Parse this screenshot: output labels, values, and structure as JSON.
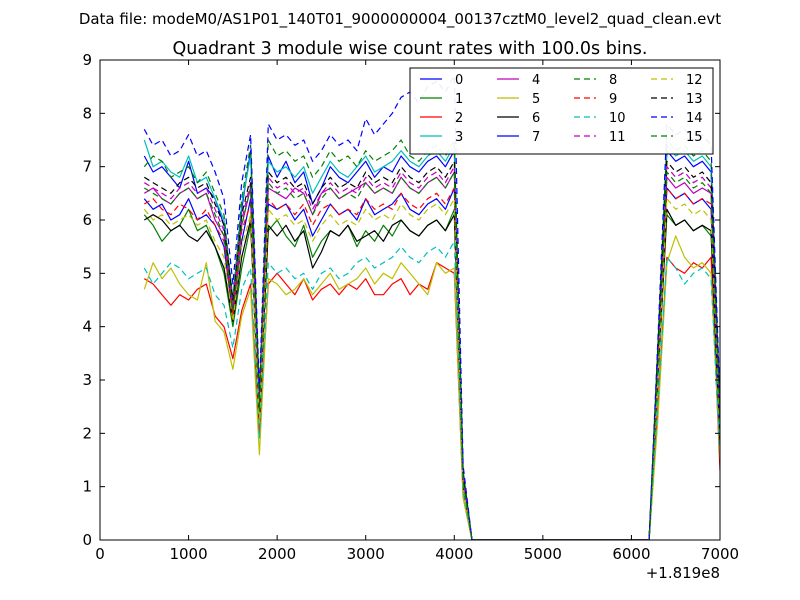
{
  "figure": {
    "suptitle": "Data file: modeM0/AS1P01_140T01_9000000004_00137cztM0_level2_quad_clean.evt"
  },
  "chart_data": {
    "type": "line",
    "title": "Quadrant 3 module wise count rates with 100.0s bins.",
    "xlabel": "",
    "ylabel": "",
    "x_offset_label": "+1.819e8",
    "xlim": [
      0,
      7000
    ],
    "ylim": [
      0,
      9
    ],
    "x_ticks": [
      0,
      1000,
      2000,
      3000,
      4000,
      5000,
      6000,
      7000
    ],
    "y_ticks": [
      0,
      1,
      2,
      3,
      4,
      5,
      6,
      7,
      8,
      9
    ],
    "x_tick_labels": [
      "0",
      "1000",
      "2000",
      "3000",
      "4000",
      "5000",
      "6000",
      "7000"
    ],
    "y_tick_labels": [
      "0",
      "1",
      "2",
      "3",
      "4",
      "5",
      "6",
      "7",
      "8",
      "9"
    ],
    "grid": false,
    "legend_position": "top-right",
    "legend_columns": 4,
    "x": [
      500,
      600,
      700,
      800,
      900,
      1000,
      1100,
      1200,
      1300,
      1400,
      1500,
      1600,
      1700,
      1800,
      1900,
      2000,
      2100,
      2200,
      2300,
      2400,
      2500,
      2600,
      2700,
      2800,
      2900,
      3000,
      3100,
      3200,
      3300,
      3400,
      3500,
      3600,
      3700,
      3800,
      3900,
      4000,
      4100,
      4200,
      4300,
      4400,
      4500,
      4600,
      4700,
      4800,
      4900,
      5000,
      5100,
      5200,
      5300,
      5400,
      5500,
      5600,
      5700,
      5800,
      5900,
      6000,
      6100,
      6200,
      6300,
      6400,
      6500,
      6600,
      6700,
      6800,
      6900,
      7000
    ],
    "series": [
      {
        "name": "0",
        "color": "#0000ff",
        "style": "solid",
        "values": [
          7.2,
          6.9,
          7.0,
          6.8,
          6.6,
          7.1,
          6.5,
          6.6,
          6.4,
          5.9,
          4.3,
          6.2,
          7.3,
          2.5,
          7.2,
          6.8,
          7.1,
          6.7,
          6.9,
          6.3,
          6.6,
          7.0,
          6.8,
          6.7,
          6.9,
          7.1,
          6.8,
          7.0,
          6.9,
          7.2,
          7.0,
          6.9,
          7.1,
          7.2,
          7.0,
          7.3,
          1.2,
          0,
          0,
          0,
          0,
          0,
          0,
          0,
          0,
          0,
          0,
          0,
          0,
          0,
          0,
          0,
          0,
          0,
          0,
          0,
          0,
          0,
          3.5,
          7.3,
          7.1,
          7.2,
          7.0,
          7.1,
          6.9,
          2.3
        ]
      },
      {
        "name": "1",
        "color": "#008000",
        "style": "solid",
        "values": [
          6.1,
          5.9,
          5.6,
          5.8,
          5.9,
          6.2,
          5.8,
          5.9,
          5.5,
          5.0,
          4.0,
          5.1,
          5.9,
          2.3,
          5.8,
          6.0,
          5.7,
          5.5,
          5.9,
          5.3,
          5.6,
          5.8,
          5.7,
          5.9,
          5.5,
          5.8,
          5.6,
          5.9,
          5.7,
          6.0,
          5.8,
          5.7,
          5.9,
          6.0,
          5.8,
          6.2,
          1.0,
          0,
          0,
          0,
          0,
          0,
          0,
          0,
          0,
          0,
          0,
          0,
          0,
          0,
          0,
          0,
          0,
          0,
          0,
          0,
          0,
          0,
          3.0,
          6.1,
          5.9,
          6.0,
          5.8,
          5.9,
          5.7,
          1.9
        ]
      },
      {
        "name": "2",
        "color": "#ff0000",
        "style": "solid",
        "values": [
          4.9,
          4.8,
          4.6,
          4.4,
          4.6,
          4.5,
          4.7,
          4.8,
          4.2,
          4.0,
          3.4,
          4.3,
          4.8,
          2.0,
          4.8,
          5.0,
          4.8,
          4.6,
          4.9,
          4.5,
          4.7,
          4.8,
          4.6,
          4.8,
          4.7,
          4.9,
          4.6,
          4.6,
          4.8,
          4.9,
          4.6,
          4.8,
          4.7,
          5.2,
          5.1,
          5.0,
          0.8,
          0,
          0,
          0,
          0,
          0,
          0,
          0,
          0,
          0,
          0,
          0,
          0,
          0,
          0,
          0,
          0,
          0,
          0,
          0,
          0,
          0,
          2.5,
          5.3,
          5.1,
          5.0,
          5.2,
          5.1,
          5.3,
          1.3
        ]
      },
      {
        "name": "3",
        "color": "#00bfbf",
        "style": "solid",
        "values": [
          7.5,
          7.0,
          7.1,
          6.9,
          6.8,
          7.2,
          6.7,
          6.8,
          6.4,
          6.0,
          4.5,
          6.3,
          7.2,
          2.6,
          7.1,
          6.9,
          7.0,
          6.8,
          7.0,
          6.5,
          6.8,
          7.1,
          6.9,
          6.8,
          7.0,
          7.2,
          6.9,
          7.0,
          7.1,
          7.3,
          7.1,
          7.0,
          7.2,
          7.3,
          7.1,
          7.4,
          1.3,
          0,
          0,
          0,
          0,
          0,
          0,
          0,
          0,
          0,
          0,
          0,
          0,
          0,
          0,
          0,
          0,
          0,
          0,
          0,
          0,
          0,
          3.6,
          7.4,
          7.2,
          7.3,
          7.1,
          7.2,
          7.0,
          2.4
        ]
      },
      {
        "name": "4",
        "color": "#bf00bf",
        "style": "solid",
        "values": [
          6.5,
          6.6,
          6.4,
          6.3,
          6.5,
          6.6,
          6.4,
          6.5,
          6.0,
          5.7,
          4.3,
          5.9,
          6.6,
          2.4,
          6.6,
          6.5,
          6.4,
          6.6,
          6.5,
          6.1,
          6.5,
          6.6,
          6.4,
          6.5,
          6.6,
          6.7,
          6.5,
          6.6,
          6.5,
          6.8,
          6.6,
          6.5,
          6.7,
          6.8,
          6.6,
          6.9,
          1.2,
          0,
          0,
          0,
          0,
          0,
          0,
          0,
          0,
          0,
          0,
          0,
          0,
          0,
          0,
          0,
          0,
          0,
          0,
          0,
          0,
          0,
          3.3,
          6.8,
          6.6,
          6.7,
          6.5,
          6.6,
          6.5,
          2.2
        ]
      },
      {
        "name": "5",
        "color": "#bfbf00",
        "style": "solid",
        "values": [
          4.7,
          5.2,
          4.9,
          5.1,
          4.8,
          4.6,
          4.5,
          5.2,
          4.1,
          3.9,
          3.2,
          4.2,
          4.7,
          1.6,
          4.9,
          4.8,
          4.6,
          4.7,
          4.9,
          4.6,
          4.8,
          5.0,
          4.7,
          4.8,
          4.9,
          5.1,
          4.8,
          5.0,
          4.9,
          5.2,
          5.0,
          4.8,
          4.6,
          5.2,
          5.0,
          5.1,
          0.8,
          0,
          0,
          0,
          0,
          0,
          0,
          0,
          0,
          0,
          0,
          0,
          0,
          0,
          0,
          0,
          0,
          0,
          0,
          0,
          0,
          0,
          2.3,
          5.2,
          5.7,
          5.3,
          5.1,
          5.2,
          5.0,
          1.5
        ]
      },
      {
        "name": "6",
        "color": "#000000",
        "style": "solid",
        "values": [
          6.0,
          6.1,
          6.0,
          5.8,
          5.9,
          5.7,
          5.6,
          5.8,
          5.5,
          5.1,
          4.1,
          5.3,
          6.0,
          2.2,
          5.9,
          5.7,
          5.9,
          5.6,
          5.8,
          5.1,
          5.4,
          5.8,
          5.7,
          5.9,
          5.6,
          5.7,
          5.8,
          5.6,
          5.9,
          6.0,
          5.8,
          5.7,
          5.9,
          6.0,
          5.8,
          6.1,
          1.0,
          0,
          0,
          0,
          0,
          0,
          0,
          0,
          0,
          0,
          0,
          0,
          0,
          0,
          0,
          0,
          0,
          0,
          0,
          0,
          0,
          0,
          3.1,
          6.2,
          5.9,
          6.0,
          5.8,
          5.9,
          5.8,
          1.8
        ]
      },
      {
        "name": "7",
        "color": "#0000ff",
        "style": "solid",
        "values": [
          6.4,
          6.2,
          6.3,
          6.0,
          6.1,
          6.4,
          6.0,
          6.1,
          5.9,
          5.5,
          4.2,
          5.6,
          6.4,
          2.4,
          6.3,
          6.2,
          6.3,
          6.0,
          6.2,
          5.7,
          6.0,
          6.3,
          6.1,
          6.2,
          6.0,
          6.4,
          6.1,
          6.2,
          6.3,
          6.5,
          6.2,
          6.1,
          6.3,
          6.4,
          6.2,
          6.6,
          1.1,
          0,
          0,
          0,
          0,
          0,
          0,
          0,
          0,
          0,
          0,
          0,
          0,
          0,
          0,
          0,
          0,
          0,
          0,
          0,
          0,
          0,
          3.4,
          6.6,
          6.4,
          6.5,
          6.3,
          6.4,
          6.2,
          2.0
        ]
      },
      {
        "name": "8",
        "color": "#008000",
        "style": "dashed",
        "values": [
          7.0,
          7.2,
          7.1,
          6.8,
          6.9,
          7.0,
          6.7,
          6.9,
          6.5,
          6.1,
          4.5,
          6.4,
          7.4,
          2.7,
          7.5,
          7.2,
          7.3,
          7.1,
          7.2,
          6.8,
          7.0,
          7.3,
          7.1,
          7.2,
          7.0,
          7.3,
          7.1,
          7.2,
          7.3,
          7.5,
          7.2,
          7.1,
          7.3,
          7.4,
          7.2,
          7.5,
          1.3,
          0,
          0,
          0,
          0,
          0,
          0,
          0,
          0,
          0,
          0,
          0,
          0,
          0,
          0,
          0,
          0,
          0,
          0,
          0,
          0,
          0,
          3.7,
          7.5,
          7.3,
          7.4,
          7.2,
          7.3,
          7.1,
          2.5
        ]
      },
      {
        "name": "9",
        "color": "#ff0000",
        "style": "dashed",
        "values": [
          6.3,
          6.4,
          6.2,
          6.1,
          6.3,
          6.2,
          6.0,
          6.2,
          5.9,
          5.6,
          4.2,
          5.8,
          6.3,
          2.3,
          6.4,
          6.2,
          6.3,
          6.1,
          6.3,
          5.9,
          6.2,
          6.3,
          6.1,
          6.2,
          6.1,
          6.4,
          6.2,
          6.3,
          6.2,
          6.5,
          6.3,
          6.2,
          6.4,
          6.5,
          6.3,
          6.6,
          1.1,
          0,
          0,
          0,
          0,
          0,
          0,
          0,
          0,
          0,
          0,
          0,
          0,
          0,
          0,
          0,
          0,
          0,
          0,
          0,
          0,
          0,
          3.2,
          6.6,
          6.4,
          6.5,
          6.3,
          6.4,
          6.3,
          2.1
        ]
      },
      {
        "name": "10",
        "color": "#00bfbf",
        "style": "dashed",
        "values": [
          5.1,
          4.8,
          5.0,
          5.2,
          5.1,
          4.9,
          5.0,
          5.1,
          4.6,
          4.4,
          3.6,
          4.7,
          5.1,
          1.9,
          5.2,
          5.0,
          5.1,
          4.9,
          5.0,
          4.7,
          5.0,
          5.1,
          4.9,
          5.0,
          5.2,
          5.3,
          5.1,
          5.2,
          5.3,
          5.5,
          5.3,
          5.2,
          5.4,
          5.5,
          5.3,
          5.6,
          0.9,
          0,
          0,
          0,
          0,
          0,
          0,
          0,
          0,
          0,
          0,
          0,
          0,
          0,
          0,
          0,
          0,
          0,
          0,
          0,
          0,
          0,
          2.6,
          5.3,
          5.1,
          4.8,
          5.0,
          5.1,
          4.9,
          1.6
        ]
      },
      {
        "name": "11",
        "color": "#bf00bf",
        "style": "dashed",
        "values": [
          6.7,
          6.6,
          6.5,
          6.4,
          6.6,
          6.7,
          6.5,
          6.6,
          6.2,
          5.8,
          4.4,
          6.0,
          6.7,
          2.5,
          6.8,
          6.6,
          6.7,
          6.5,
          6.6,
          6.2,
          6.5,
          6.7,
          6.5,
          6.6,
          6.5,
          6.8,
          6.6,
          6.7,
          6.6,
          6.9,
          6.7,
          6.6,
          6.8,
          6.9,
          6.7,
          7.0,
          1.2,
          0,
          0,
          0,
          0,
          0,
          0,
          0,
          0,
          0,
          0,
          0,
          0,
          0,
          0,
          0,
          0,
          0,
          0,
          0,
          0,
          0,
          3.4,
          7.0,
          6.8,
          6.9,
          6.7,
          6.8,
          6.6,
          2.3
        ]
      },
      {
        "name": "12",
        "color": "#bfbf00",
        "style": "dashed",
        "values": [
          6.2,
          6.0,
          6.1,
          5.9,
          6.0,
          6.1,
          5.9,
          6.0,
          5.6,
          5.3,
          4.1,
          5.5,
          6.1,
          2.2,
          6.2,
          6.0,
          6.1,
          5.9,
          6.0,
          5.6,
          5.9,
          6.1,
          5.9,
          6.0,
          5.9,
          6.2,
          6.0,
          6.1,
          6.0,
          6.3,
          6.1,
          6.0,
          6.2,
          6.3,
          6.1,
          6.4,
          1.0,
          0,
          0,
          0,
          0,
          0,
          0,
          0,
          0,
          0,
          0,
          0,
          0,
          0,
          0,
          0,
          0,
          0,
          0,
          0,
          0,
          0,
          3.1,
          6.4,
          6.2,
          6.3,
          6.1,
          6.2,
          6.0,
          2.0
        ]
      },
      {
        "name": "13",
        "color": "#000000",
        "style": "dashed",
        "values": [
          6.8,
          6.7,
          6.6,
          6.5,
          6.7,
          6.8,
          6.6,
          6.7,
          6.3,
          5.9,
          4.5,
          6.1,
          6.8,
          2.5,
          6.9,
          6.7,
          6.8,
          6.6,
          6.7,
          6.3,
          6.6,
          6.8,
          6.6,
          6.7,
          6.6,
          6.9,
          6.7,
          6.8,
          6.7,
          7.0,
          6.8,
          6.7,
          6.9,
          7.0,
          6.8,
          7.1,
          1.2,
          0,
          0,
          0,
          0,
          0,
          0,
          0,
          0,
          0,
          0,
          0,
          0,
          0,
          0,
          0,
          0,
          0,
          0,
          0,
          0,
          0,
          3.5,
          7.1,
          6.9,
          7.0,
          6.8,
          6.9,
          6.7,
          2.4
        ]
      },
      {
        "name": "14",
        "color": "#0000ff",
        "style": "dashed",
        "values": [
          7.7,
          7.4,
          7.5,
          7.2,
          7.3,
          7.6,
          7.2,
          7.3,
          6.9,
          6.4,
          4.8,
          6.7,
          7.6,
          2.8,
          7.8,
          7.5,
          7.6,
          7.4,
          7.5,
          7.1,
          7.3,
          7.6,
          7.4,
          7.5,
          7.3,
          7.9,
          7.6,
          7.8,
          8.0,
          8.3,
          8.4,
          8.2,
          8.5,
          8.6,
          8.4,
          8.7,
          1.4,
          0,
          0,
          0,
          0,
          0,
          0,
          0,
          0,
          0,
          0,
          0,
          0,
          0,
          0,
          0,
          0,
          0,
          0,
          0,
          0,
          0,
          3.8,
          7.8,
          7.6,
          7.7,
          7.5,
          7.6,
          7.4,
          2.6
        ]
      },
      {
        "name": "15",
        "color": "#008000",
        "style": "dashed",
        "values": [
          6.6,
          6.5,
          6.4,
          6.3,
          6.5,
          6.6,
          6.4,
          6.5,
          6.1,
          5.7,
          4.3,
          5.9,
          6.6,
          2.4,
          6.7,
          6.5,
          6.6,
          6.4,
          6.5,
          6.1,
          6.4,
          6.6,
          6.4,
          6.5,
          6.4,
          6.7,
          6.5,
          6.6,
          6.5,
          6.8,
          6.6,
          6.5,
          6.7,
          6.8,
          6.6,
          6.9,
          1.1,
          0,
          0,
          0,
          0,
          0,
          0,
          0,
          0,
          0,
          0,
          0,
          0,
          0,
          0,
          0,
          0,
          0,
          0,
          0,
          0,
          0,
          3.3,
          6.9,
          6.7,
          6.8,
          6.6,
          6.7,
          6.5,
          2.2
        ]
      }
    ]
  }
}
